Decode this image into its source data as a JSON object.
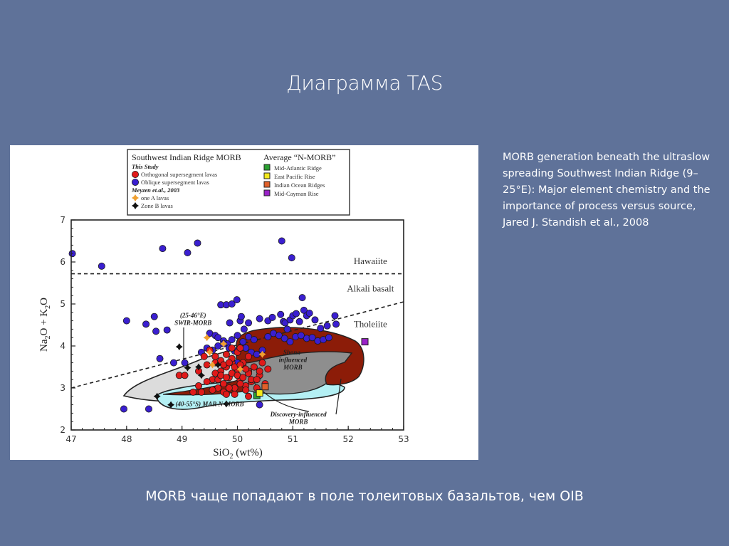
{
  "slide": {
    "title": "Диаграмма TAS",
    "citation": "MORB generation beneath the ultraslow spreading Southwest Indian Ridge (9–25°E): Major element chemistry and the importance of process versus source, Jared J. Standish et al., 2008",
    "caption": "MORB чаще попадают в поле толеитовых базальтов, чем OIB",
    "background_color": "#5f7299"
  },
  "chart_data": {
    "type": "scatter",
    "title": "",
    "xlabel": "SiO2 (wt%)",
    "ylabel": "Na2O + K2O",
    "xlim": [
      47,
      53
    ],
    "ylim": [
      2,
      7
    ],
    "x_ticks": [
      "47",
      "48",
      "49",
      "50",
      "51",
      "52",
      "53"
    ],
    "y_ticks": [
      "2",
      "3",
      "4",
      "5",
      "6",
      "7"
    ],
    "grid": false,
    "legend": {
      "position": "top-inside",
      "left_group": {
        "title": "Southwest Indian Ridge MORB",
        "subgroups": [
          {
            "title": "This Study",
            "items": [
              {
                "label": "Orthogonal supersegment lavas",
                "marker": "circle",
                "color": "#e01a1a"
              },
              {
                "label": "Oblique supersegment lavas",
                "marker": "circle",
                "color": "#3a1fd0"
              }
            ]
          },
          {
            "title": "Meyzen et.al., 2003",
            "items": [
              {
                "label": "one A lavas",
                "marker": "plus-diamond",
                "color": "#f0a030"
              },
              {
                "label": "Zone B lavas",
                "marker": "plus-diamond",
                "color": "#111111"
              }
            ]
          }
        ]
      },
      "right_group": {
        "title": "Average “N-MORB”",
        "items": [
          {
            "label": "Mid-Atlantic Ridge",
            "marker": "square",
            "color": "#2aa030"
          },
          {
            "label": "East Pacific Rise",
            "marker": "square",
            "color": "#f2e81a"
          },
          {
            "label": "Indian Ocean Ridges",
            "marker": "square",
            "color": "#e0602a"
          },
          {
            "label": "Mid-Cayman Rise",
            "marker": "square",
            "color": "#9a22c8"
          }
        ]
      }
    },
    "boundary_lines": [
      {
        "name": "Hawaiite / Alkali basalt boundary",
        "style": "dashed",
        "points": [
          [
            47,
            5.72
          ],
          [
            53,
            5.72
          ]
        ]
      },
      {
        "name": "Alkali basalt / Tholeiite boundary",
        "style": "dashed",
        "points": [
          [
            47,
            3.0
          ],
          [
            53,
            5.05
          ]
        ]
      }
    ],
    "field_labels": [
      {
        "text": "Hawaiite",
        "x": 52.4,
        "y": 5.95
      },
      {
        "text": "Alkali basalt",
        "x": 52.4,
        "y": 5.3
      },
      {
        "text": "Tholeiite",
        "x": 52.4,
        "y": 4.45
      }
    ],
    "regions": [
      {
        "name": "(25-46°E) SWIR-MORB",
        "fill": "#d9d9d9"
      },
      {
        "name": "(40-55°S) MAR N-MORB",
        "fill": "#a8eef2"
      },
      {
        "name": "Shona-influenced MORB",
        "fill": "#8c8c8c"
      },
      {
        "name": "Discovery-influenced MORB",
        "fill": "#8c1c08"
      }
    ],
    "region_labels": [
      {
        "text": "(25-46°E)",
        "x": 49.2,
        "y": 4.68
      },
      {
        "text": "SWIR-MORB",
        "x": 49.2,
        "y": 4.5
      },
      {
        "text": "(40-55°S) MAR N-MORB",
        "x": 49.5,
        "y": 2.57
      },
      {
        "text": "Shona-",
        "x": 51.0,
        "y": 3.8
      },
      {
        "text": "influenced",
        "x": 51.0,
        "y": 3.62
      },
      {
        "text": "MORB",
        "x": 51.0,
        "y": 3.44
      },
      {
        "text": "Discovery-influenced",
        "x": 51.1,
        "y": 2.32
      },
      {
        "text": "MORB",
        "x": 51.1,
        "y": 2.14
      }
    ],
    "series": [
      {
        "name": "Oblique supersegment lavas",
        "marker": "circle",
        "color": "#3a1fd0",
        "x": [
          47.02,
          47.55,
          48.65,
          49.1,
          49.28,
          50.8,
          50.98,
          48.0,
          48.5,
          48.53,
          48.73,
          48.35,
          48.6,
          48.85,
          49.05,
          49.7,
          49.8,
          49.86,
          49.9,
          49.99,
          50.05,
          50.07,
          50.12,
          50.2,
          50.4,
          50.55,
          50.63,
          50.78,
          50.83,
          50.86,
          50.9,
          50.95,
          51.0,
          51.06,
          51.12,
          51.17,
          51.2,
          51.25,
          51.3,
          51.4,
          51.5,
          51.62,
          51.76,
          51.78,
          49.5,
          49.6,
          49.65,
          49.75,
          49.82,
          49.9,
          50.0,
          50.1,
          50.2,
          50.3,
          50.55,
          50.65,
          50.75,
          50.85,
          50.95,
          51.05,
          51.15,
          51.25,
          51.35,
          51.45,
          51.55,
          51.65,
          49.35,
          49.45,
          49.55,
          49.65,
          49.75,
          49.85,
          49.95,
          50.15,
          50.25,
          50.35,
          50.45,
          47.95,
          48.4,
          50.4,
          49.6,
          49.9,
          50.0
        ],
        "y": [
          6.2,
          5.9,
          6.32,
          6.22,
          6.45,
          6.5,
          6.1,
          4.6,
          4.7,
          4.35,
          4.38,
          4.52,
          3.7,
          3.6,
          3.6,
          4.98,
          4.98,
          4.55,
          5.0,
          5.1,
          4.6,
          4.7,
          4.4,
          4.55,
          4.65,
          4.6,
          4.68,
          4.75,
          4.58,
          4.55,
          4.4,
          4.62,
          4.72,
          4.77,
          4.58,
          5.15,
          4.85,
          4.72,
          4.78,
          4.62,
          4.42,
          4.48,
          4.72,
          4.52,
          4.3,
          4.25,
          4.2,
          4.12,
          4.05,
          4.15,
          4.25,
          4.1,
          4.22,
          4.15,
          4.22,
          4.3,
          4.25,
          4.18,
          4.1,
          4.22,
          4.25,
          4.18,
          4.2,
          4.12,
          4.15,
          4.2,
          3.85,
          3.95,
          3.9,
          4.0,
          4.05,
          3.95,
          3.88,
          3.95,
          3.85,
          3.8,
          3.9,
          2.5,
          2.5,
          2.6,
          3.75,
          3.7,
          3.6
        ]
      },
      {
        "name": "Orthogonal supersegment lavas",
        "marker": "circle",
        "color": "#e01a1a",
        "x": [
          48.95,
          49.05,
          49.2,
          49.3,
          49.45,
          49.55,
          49.6,
          49.65,
          49.7,
          49.75,
          49.8,
          49.85,
          49.9,
          49.95,
          50.0,
          50.05,
          50.1,
          50.15,
          50.2,
          50.25,
          50.3,
          50.35,
          50.4,
          49.5,
          49.6,
          49.7,
          49.8,
          49.9,
          50.0,
          50.1,
          50.2,
          50.3,
          50.4,
          49.55,
          49.65,
          49.75,
          49.85,
          49.95,
          50.05,
          50.15,
          50.25,
          49.6,
          49.7,
          49.8,
          49.9,
          50.0,
          50.1,
          50.2,
          49.75,
          49.85,
          49.95,
          50.05,
          50.15,
          49.4,
          49.45,
          50.45,
          50.5,
          49.9,
          50.05,
          49.8,
          50.2,
          50.35,
          49.3,
          49.35,
          50.55
        ],
        "y": [
          3.3,
          3.3,
          2.9,
          3.4,
          3.55,
          3.2,
          3.6,
          3.0,
          3.4,
          3.1,
          3.5,
          3.25,
          3.6,
          3.0,
          3.45,
          3.2,
          3.55,
          3.05,
          3.4,
          3.15,
          3.5,
          3.0,
          3.3,
          3.9,
          3.75,
          3.65,
          3.8,
          3.7,
          3.85,
          3.6,
          3.75,
          3.5,
          3.4,
          2.95,
          3.2,
          2.9,
          3.0,
          2.85,
          3.1,
          2.95,
          3.2,
          3.35,
          3.3,
          3.25,
          3.35,
          3.3,
          3.25,
          3.35,
          3.55,
          3.6,
          3.5,
          3.55,
          3.45,
          3.75,
          3.15,
          3.6,
          3.1,
          3.95,
          3.95,
          2.85,
          2.8,
          3.2,
          3.05,
          2.9,
          3.45
        ]
      },
      {
        "name": "one A lavas",
        "marker": "plus-diamond",
        "color": "#f0a030",
        "x": [
          49.45,
          49.5,
          49.55,
          49.75,
          50.05,
          50.45
        ],
        "y": [
          4.2,
          3.85,
          3.55,
          4.05,
          3.45,
          3.8
        ]
      },
      {
        "name": "Zone B lavas",
        "marker": "plus-diamond",
        "color": "#111111",
        "x": [
          48.95,
          49.1,
          49.3,
          49.35,
          48.55,
          48.8,
          49.8,
          49.65
        ],
        "y": [
          3.98,
          3.48,
          3.5,
          3.3,
          2.8,
          2.6,
          2.62,
          3.55
        ]
      },
      {
        "name": "Average N-MORB",
        "marker": "square",
        "points": [
          {
            "label": "Mid-Atlantic Ridge",
            "x": 50.35,
            "y": 2.82,
            "color": "#2aa030"
          },
          {
            "label": "East Pacific Rise",
            "x": 50.4,
            "y": 2.88,
            "color": "#f2e81a"
          },
          {
            "label": "Indian Ocean Ridges",
            "x": 50.5,
            "y": 3.03,
            "color": "#e0602a"
          },
          {
            "label": "Mid-Cayman Rise",
            "x": 52.3,
            "y": 4.1,
            "color": "#9a22c8"
          }
        ]
      }
    ]
  }
}
